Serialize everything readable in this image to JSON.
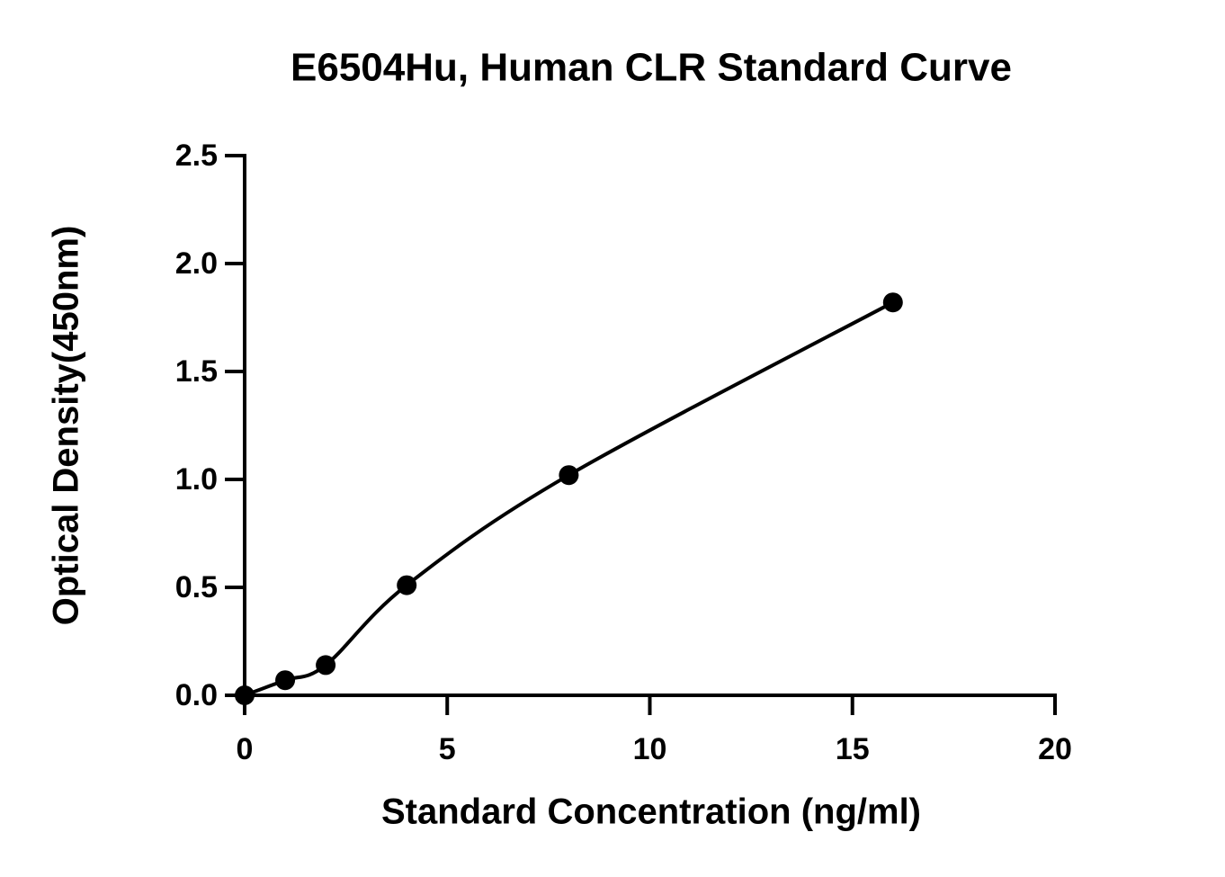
{
  "chart_data": {
    "type": "scatter",
    "title": "E6504Hu, Human CLR Standard Curve",
    "x_label": "Standard Concentration (ng/ml)",
    "y_label": "Optical Density(450nm)",
    "x": [
      0,
      1,
      2,
      4,
      8,
      16
    ],
    "values": [
      0.0,
      0.07,
      0.14,
      0.51,
      1.02,
      1.82
    ],
    "color": "#000000",
    "curve": true,
    "xlim": [
      0,
      20
    ],
    "xticks": [
      0,
      5,
      10,
      15,
      20
    ],
    "ylim": [
      0,
      2.5
    ],
    "yticks": [
      {
        "value": 0,
        "label": "0.0"
      },
      {
        "value": 0.5,
        "label": "0.5"
      },
      {
        "value": 1,
        "label": "1.0"
      },
      {
        "value": 1.5,
        "label": "1.5"
      },
      {
        "value": 2,
        "label": "2.0"
      },
      {
        "value": 2.5,
        "label": "2.5"
      }
    ],
    "grid": false
  }
}
